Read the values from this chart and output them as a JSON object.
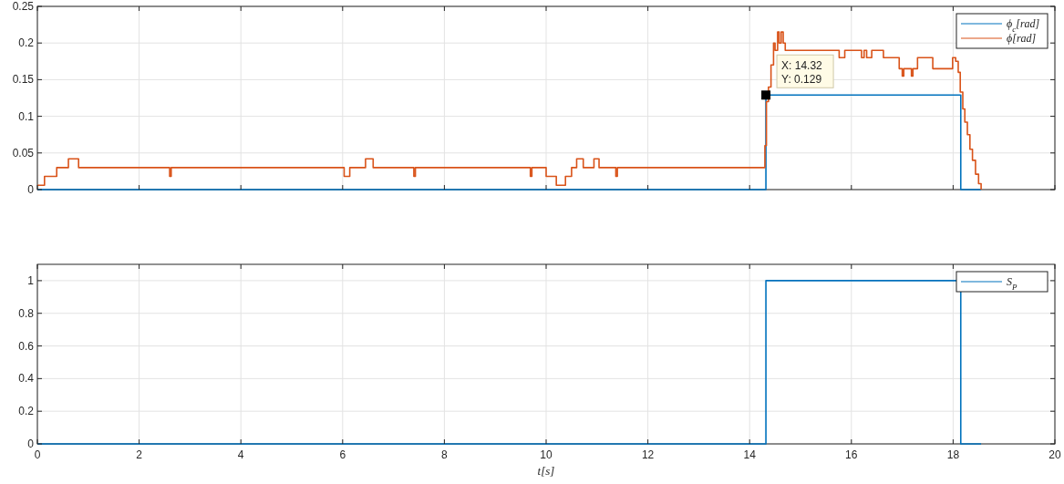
{
  "chart_data": [
    {
      "type": "step",
      "xlim": [
        0,
        20
      ],
      "ylim": [
        0,
        0.25
      ],
      "xticks": [
        0,
        2,
        4,
        6,
        8,
        10,
        12,
        14,
        16,
        18,
        20
      ],
      "yticks": [
        0,
        0.05,
        0.1,
        0.15,
        0.2,
        0.25
      ],
      "tick_labels": "y",
      "grid": true,
      "legend": "top right",
      "line_style": "solid",
      "annotations": [
        {
          "text": "X: 14.32\nY: 0.129",
          "x": 14.32,
          "y": 0.129
        }
      ],
      "series": [
        {
          "name": "ϕ$_{c}$[rad]",
          "color": "#0072bd",
          "x": [
            0,
            14.32,
            18.15,
            18.55
          ],
          "values": [
            0,
            0.129,
            0,
            0
          ]
        },
        {
          "name": "ϕ[rad]",
          "color": "#d95319",
          "x": [
            0,
            0.14,
            0.38,
            0.61,
            0.81,
            2.6,
            2.63,
            6.03,
            6.14,
            6.45,
            6.6,
            7.4,
            7.43,
            9.69,
            9.72,
            10.0,
            10.2,
            10.38,
            10.5,
            10.6,
            10.73,
            10.94,
            11.04,
            11.37,
            11.4,
            14.3,
            14.33,
            14.37,
            14.42,
            14.47,
            14.5,
            14.55,
            14.58,
            14.62,
            14.66,
            14.7,
            15.76,
            15.87,
            16.2,
            16.25,
            16.3,
            16.4,
            16.63,
            16.94,
            17.0,
            17.03,
            17.18,
            17.21,
            17.3,
            17.6,
            17.99,
            18.05,
            18.1,
            18.14,
            18.19,
            18.23,
            18.28,
            18.33,
            18.38,
            18.44,
            18.5,
            18.55
          ],
          "values": [
            0.006,
            0.018,
            0.03,
            0.042,
            0.03,
            0.018,
            0.03,
            0.018,
            0.03,
            0.042,
            0.03,
            0.018,
            0.03,
            0.018,
            0.03,
            0.018,
            0.006,
            0.018,
            0.03,
            0.042,
            0.03,
            0.042,
            0.03,
            0.018,
            0.03,
            0.06,
            0.12,
            0.14,
            0.17,
            0.2,
            0.19,
            0.215,
            0.2,
            0.215,
            0.2,
            0.19,
            0.18,
            0.19,
            0.18,
            0.19,
            0.18,
            0.19,
            0.18,
            0.165,
            0.155,
            0.165,
            0.155,
            0.165,
            0.18,
            0.165,
            0.18,
            0.175,
            0.16,
            0.133,
            0.11,
            0.092,
            0.075,
            0.055,
            0.04,
            0.021,
            0.008,
            0
          ]
        }
      ]
    },
    {
      "type": "step",
      "xlabel": "t[s]",
      "xlim": [
        0,
        20
      ],
      "ylim": [
        0,
        1.1
      ],
      "xticks": [
        0,
        2,
        4,
        6,
        8,
        10,
        12,
        14,
        16,
        18,
        20
      ],
      "yticks": [
        0,
        0.2,
        0.4,
        0.6,
        0.8,
        1
      ],
      "grid": true,
      "legend": "top right",
      "line_style": "solid",
      "series": [
        {
          "name": "S$_{P}$",
          "color": "#0072bd",
          "x": [
            0,
            14.32,
            18.15,
            18.55
          ],
          "values": [
            0,
            1,
            0,
            0
          ]
        }
      ]
    }
  ]
}
